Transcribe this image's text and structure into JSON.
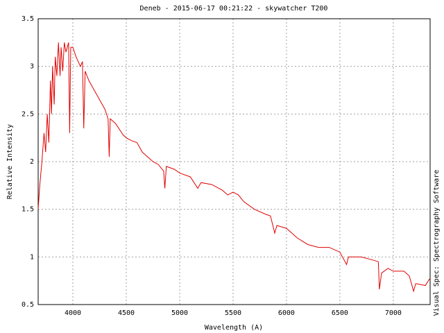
{
  "chart_data": {
    "type": "line",
    "title": "Deneb - 2015-06-17 00:21:22 - skywatcher T200",
    "x_label": "Wavelength (A)",
    "y_label": "Relative Intensity",
    "side_label": "Visual Spec: Spectrography Software",
    "x": [
      3675,
      3690,
      3710,
      3730,
      3745,
      3760,
      3775,
      3790,
      3800,
      3810,
      3825,
      3835,
      3850,
      3865,
      3880,
      3890,
      3905,
      3920,
      3935,
      3960,
      3970,
      3980,
      4000,
      4030,
      4070,
      4090,
      4102,
      4115,
      4150,
      4200,
      4250,
      4300,
      4330,
      4340,
      4350,
      4400,
      4471,
      4500,
      4550,
      4600,
      4650,
      4700,
      4750,
      4800,
      4850,
      4861,
      4875,
      4950,
      5000,
      5100,
      5169,
      5200,
      5300,
      5400,
      5450,
      5500,
      5550,
      5600,
      5700,
      5800,
      5850,
      5890,
      5910,
      6000,
      6100,
      6200,
      6300,
      6400,
      6500,
      6563,
      6580,
      6700,
      6800,
      6860,
      6870,
      6890,
      6950,
      7000,
      7100,
      7150,
      7190,
      7210,
      7300,
      7340
    ],
    "series": [
      {
        "name": "Deneb",
        "color": "#e00000",
        "values": [
          1.5,
          1.75,
          2.0,
          2.3,
          2.1,
          2.5,
          2.2,
          2.85,
          2.5,
          3.0,
          2.6,
          3.1,
          2.9,
          3.25,
          2.9,
          3.2,
          2.95,
          3.25,
          3.15,
          3.25,
          2.3,
          3.2,
          3.2,
          3.1,
          3.0,
          3.05,
          2.35,
          2.95,
          2.85,
          2.75,
          2.65,
          2.55,
          2.45,
          2.05,
          2.45,
          2.4,
          2.28,
          2.25,
          2.22,
          2.2,
          2.1,
          2.05,
          2.0,
          1.97,
          1.9,
          1.72,
          1.95,
          1.92,
          1.88,
          1.84,
          1.72,
          1.78,
          1.76,
          1.7,
          1.65,
          1.68,
          1.65,
          1.58,
          1.5,
          1.45,
          1.43,
          1.25,
          1.33,
          1.3,
          1.2,
          1.13,
          1.1,
          1.1,
          1.05,
          0.92,
          1.0,
          1.0,
          0.97,
          0.95,
          0.66,
          0.83,
          0.88,
          0.85,
          0.85,
          0.8,
          0.64,
          0.72,
          0.7,
          0.77
        ]
      }
    ],
    "xlim": [
      3675,
      7345
    ],
    "ylim": [
      0.5,
      3.5
    ],
    "xticks": [
      4000,
      4500,
      5000,
      5500,
      6000,
      6500,
      7000
    ],
    "yticks": [
      0.5,
      1,
      1.5,
      2,
      2.5,
      3,
      3.5
    ],
    "grid": true
  }
}
